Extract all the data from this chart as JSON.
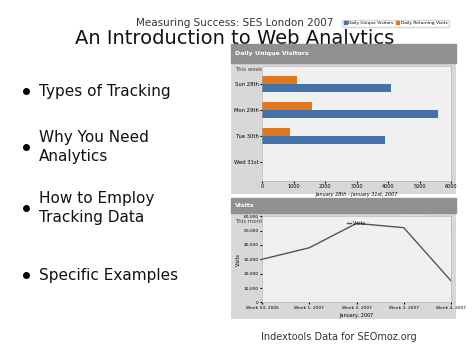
{
  "title_small": "Measuring Success: SES London 2007",
  "title_large": "An Introduction to Web Analytics",
  "bullets": [
    "Types of Tracking",
    "Why You Need\nAnalytics",
    "How to Employ\nTracking Data",
    "Specific Examples"
  ],
  "background_color": "#ffffff",
  "title_small_fontsize": 7.5,
  "title_large_fontsize": 14,
  "bullet_fontsize": 11,
  "caption": "Indextools Data for SEOmoz.org",
  "caption_fontsize": 7,
  "bar_chart": {
    "title": "Daily Unique Visitors",
    "subtitle": "This week",
    "categories": [
      "Sun 28th",
      "Mon 29th",
      "Tue 30th",
      "Wed 31st"
    ],
    "unique_values": [
      4100,
      5600,
      3900,
      0
    ],
    "returning_values": [
      1100,
      1600,
      900,
      0
    ],
    "unique_color": "#4472a8",
    "returning_color": "#e07820",
    "xlabel": "January 28th - January 31st, 2007",
    "xlim": [
      0,
      6000
    ],
    "xticks": [
      0,
      1000,
      2000,
      3000,
      4000,
      5000,
      6000
    ],
    "header_color": "#909090",
    "bg_color": "#d8d8d8"
  },
  "line_chart": {
    "title": "Visits",
    "subtitle": "This month",
    "ylabel": "Visits",
    "legend_label": "Visits",
    "x_labels": [
      "Week 53, 2006",
      "Week 1, 2007",
      "Week 2, 2007",
      "Week 3, 2007",
      "Week 4, 2007"
    ],
    "x_vals": [
      0,
      1,
      2,
      3,
      4
    ],
    "y_vals": [
      30000,
      38000,
      55000,
      52000,
      15000
    ],
    "yticks": [
      0,
      10000,
      20000,
      30000,
      40000,
      50000,
      60000
    ],
    "ytick_labels": [
      "0",
      "10,000",
      "20,000",
      "30,000",
      "40,000",
      "50,000",
      "60,000"
    ],
    "line_color": "#555555",
    "header_color": "#909090",
    "bg_color": "#d8d8d8",
    "xlabel": "January, 2007"
  }
}
